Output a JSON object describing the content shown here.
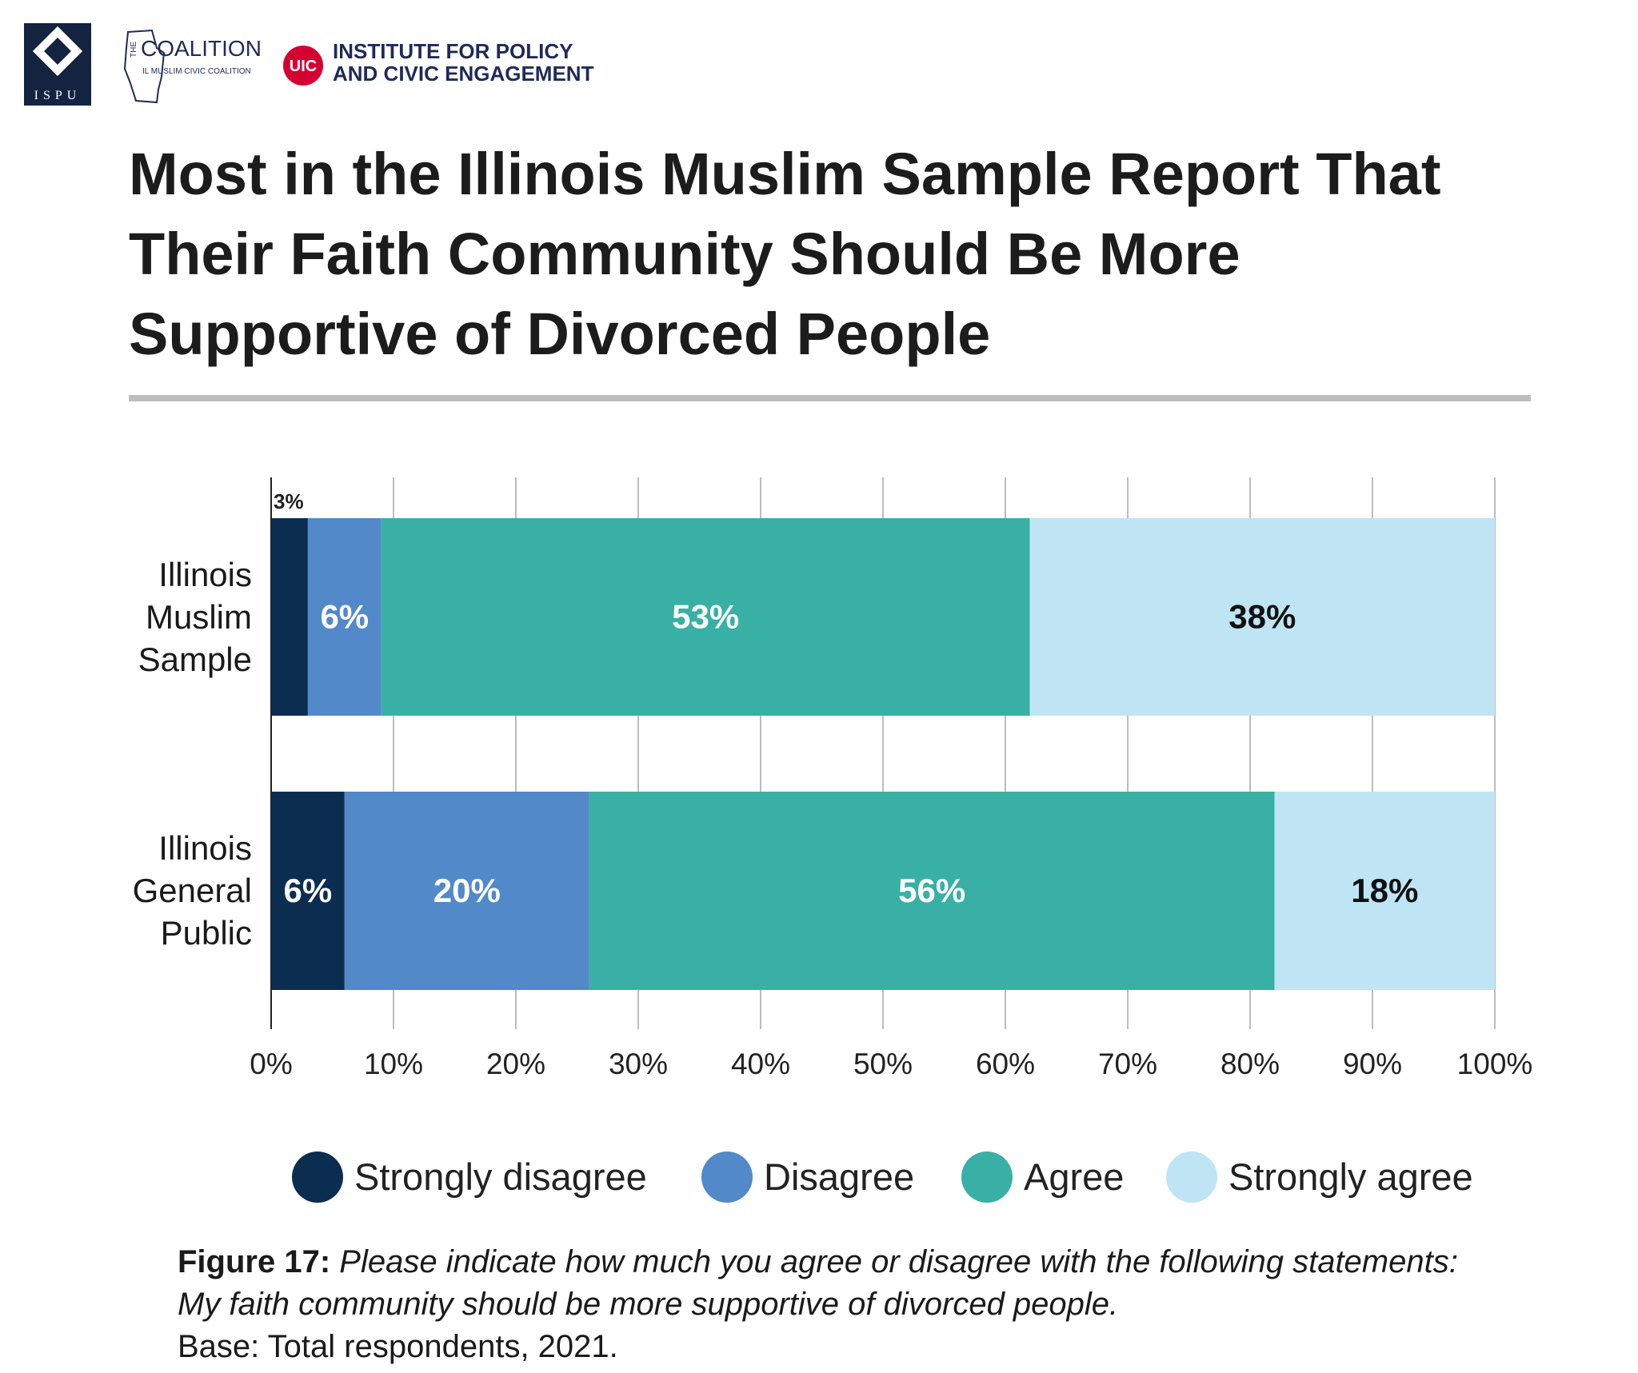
{
  "logos": {
    "ispu": "ISPU",
    "coalition_the": "THE",
    "coalition": "COALITION",
    "coalition_sub": "IL MUSLIM CIVIC COALITION",
    "uic": "UIC",
    "ipce": "INSTITUTE FOR POLICY\nAND CIVIC ENGAGEMENT"
  },
  "chart_data": {
    "type": "stacked-bar-horizontal",
    "title": "Most in the Illinois Muslim Sample Report That\nTheir Faith Community Should Be More\nSupportive of Divorced People",
    "categories": [
      "Illinois\nMuslim\nSample",
      "Illinois\nGeneral\nPublic"
    ],
    "series": [
      {
        "name": "Strongly disagree",
        "color": "#0b2d4f",
        "label_color": "#ffffff",
        "values": [
          3,
          6
        ],
        "value_labels": [
          "3%",
          "6%"
        ]
      },
      {
        "name": "Disagree",
        "color": "#5189c9",
        "label_color": "#ffffff",
        "values": [
          6,
          20
        ],
        "value_labels": [
          "6%",
          "20%"
        ]
      },
      {
        "name": "Agree",
        "color": "#38b0a5",
        "label_color": "#ffffff",
        "values": [
          53,
          56
        ],
        "value_labels": [
          "53%",
          "56%"
        ]
      },
      {
        "name": "Strongly agree",
        "color": "#bfe5f5",
        "label_color": "#111111",
        "values": [
          38,
          18
        ],
        "value_labels": [
          "38%",
          "18%"
        ]
      }
    ],
    "xlim": [
      0,
      100
    ],
    "xticks": [
      {
        "value": 0,
        "label": "0%"
      },
      {
        "value": 10,
        "label": "10%"
      },
      {
        "value": 20,
        "label": "20%"
      },
      {
        "value": 30,
        "label": "30%"
      },
      {
        "value": 40,
        "label": "40%"
      },
      {
        "value": 50,
        "label": "50%"
      },
      {
        "value": 60,
        "label": "60%"
      },
      {
        "value": 70,
        "label": "70%"
      },
      {
        "value": 80,
        "label": "80%"
      },
      {
        "value": 90,
        "label": "90%"
      },
      {
        "value": 100,
        "label": "100%"
      }
    ],
    "grid": true,
    "legend": "bottom",
    "caption": {
      "label": "Figure 17:",
      "question": "Please indicate how much you agree or disagree with the following statements: My faith community should be more supportive of divorced people.",
      "base": "Base: Total respondents, 2021."
    }
  }
}
